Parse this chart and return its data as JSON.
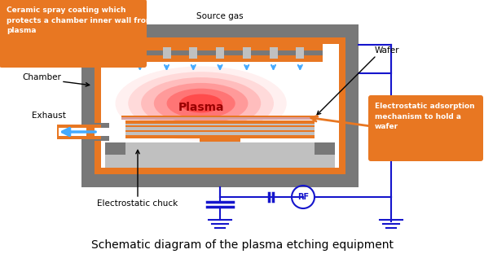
{
  "title": "Schematic diagram of the plasma etching equipment",
  "title_fontsize": 10,
  "bg_color": "#ffffff",
  "orange": "#E87722",
  "gray_dark": "#787878",
  "gray_light": "#C0C0C0",
  "gray_medium": "#A0A0A0",
  "blue": "#1515CC",
  "blue_arrow": "#44AAFF",
  "labels": {
    "chamber": "Chamber",
    "source_gas": "Source gas",
    "wafer": "Wafer",
    "exhaust": "Exhaust",
    "plasma": "Plasma",
    "chuck": "Electrostatic chuck",
    "ceramic": "Ceramic spray coating which\nprotects a chamber inner wall from\nplasma",
    "electrostatic": "Electrostatic adsorption\nmechanism to hold a\nwafer",
    "rf": "RF"
  }
}
